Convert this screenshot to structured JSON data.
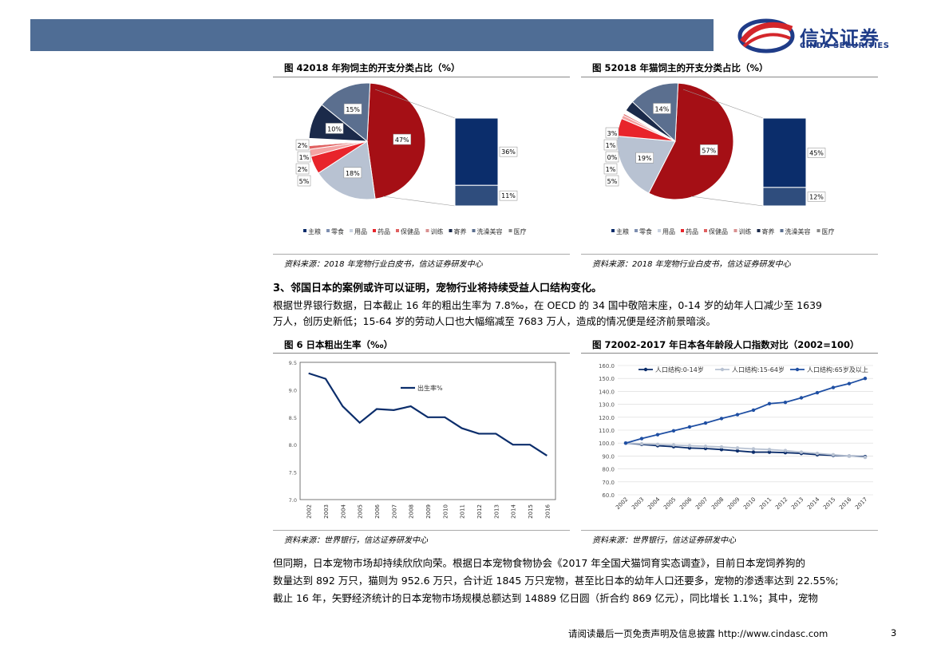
{
  "header": {
    "logo_cn": "信达证券",
    "logo_en": "CINDA SECURITIES"
  },
  "fig4": {
    "title": "图 42018 年狗饲主的开支分类占比（%）",
    "source": "资料来源：2018 年宠物行业白皮书，信达证券研发中心"
  },
  "fig5": {
    "title": "图 52018 年猫饲主的开支分类占比（%）",
    "source": "资料来源：2018 年宠物行业白皮书，信达证券研发中心"
  },
  "section": {
    "title": "3、邻国日本的案例或许可以证明，宠物行业将持续受益人口结构变化。",
    "para1_line1": "根据世界银行数据，日本截止 16 年的粗出生率为 7.8‰，在 OECD 的 34 国中敬陪末座，0-14 岁的幼年人口减少至 1639",
    "para1_line2": "万人，创历史新低；15-64 岁的劳动人口也大幅缩减至 7683 万人，造成的情况便是经济前景暗淡。"
  },
  "fig6": {
    "title": "图 6 日本粗出生率（‰）",
    "source": "资料来源：世界银行，信达证券研发中心"
  },
  "fig7": {
    "title": "图 72002-2017 年日本各年龄段人口指数对比（2002=100）",
    "source": "资料来源：世界银行，信达证券研发中心"
  },
  "para2": {
    "line1": "但同期，日本宠物市场却持续欣欣向荣。根据日本宠物食物协会《2017 年全国犬猫饲育实态调查》，目前日本宠饲养狗的",
    "line2": "数量达到 892 万只，猫则为 952.6 万只，合计近 1845 万只宠物，甚至比日本的幼年人口还要多，宠物的渗透率达到 22.55%;",
    "line3": "截止 16 年，矢野经济统计的日本宠物市场规模总额达到 14889 亿日圆（折合约 869 亿元），同比增长 1.1%；其中，宠物"
  },
  "footer": {
    "text": "请阅读最后一页免责声明及信息披露 http://www.cindasc.com",
    "page": "3"
  },
  "colors": {
    "header_bar": "#4f6d95",
    "red": "#a50f15",
    "navy": "#1b2a4a",
    "slate": "#5b6f8f",
    "silver": "#b8c2d2",
    "bright_red": "#e8242b",
    "dark_blue": "#0b2d6b"
  },
  "chart_data": [
    {
      "type": "pie",
      "id": "fig4",
      "legend": [
        "主粮",
        "零食",
        "用品",
        "药品",
        "保健品",
        "训练",
        "寄养",
        "洗澡美容",
        "医疗"
      ],
      "slices": [
        {
          "name": "主粮",
          "label": "47%",
          "value": 47
        },
        {
          "name": "用品",
          "label": "18%",
          "value": 18
        },
        {
          "name": "药品",
          "label": "5%",
          "value": 5
        },
        {
          "name": "保健品",
          "label": "2%",
          "value": 2
        },
        {
          "name": "训练",
          "label": "1%",
          "value": 1
        },
        {
          "name": "寄养",
          "label": "2%",
          "value": 2
        },
        {
          "name": "洗澡美容",
          "label": "10%",
          "value": 10
        },
        {
          "name": "医疗",
          "label": "15%",
          "value": 15
        }
      ],
      "breakout": [
        {
          "label": "36%",
          "value": 36
        },
        {
          "label": "11%",
          "value": 11
        }
      ]
    },
    {
      "type": "pie",
      "id": "fig5",
      "legend": [
        "主粮",
        "零食",
        "用品",
        "药品",
        "保健品",
        "训练",
        "寄养",
        "洗澡美容",
        "医疗"
      ],
      "slices": [
        {
          "name": "主粮",
          "label": "57%",
          "value": 57
        },
        {
          "name": "用品",
          "label": "19%",
          "value": 19
        },
        {
          "name": "药品",
          "label": "5%",
          "value": 5
        },
        {
          "name": "保健品",
          "label": "1%",
          "value": 1
        },
        {
          "name": "训练",
          "label": "0%",
          "value": 0.5
        },
        {
          "name": "寄养",
          "label": "1%",
          "value": 1
        },
        {
          "name": "洗澡美容",
          "label": "3%",
          "value": 3
        },
        {
          "name": "医疗",
          "label": "14%",
          "value": 14
        }
      ],
      "breakout": [
        {
          "label": "45%",
          "value": 45
        },
        {
          "label": "12%",
          "value": 12
        }
      ]
    },
    {
      "type": "line",
      "id": "fig6",
      "x": [
        "2002",
        "2003",
        "2004",
        "2005",
        "2006",
        "2007",
        "2008",
        "2009",
        "2010",
        "2011",
        "2012",
        "2013",
        "2014",
        "2015",
        "2016"
      ],
      "series": [
        {
          "name": "出生率%",
          "values": [
            9.3,
            9.2,
            8.7,
            8.4,
            8.65,
            8.63,
            8.7,
            8.5,
            8.5,
            8.3,
            8.2,
            8.2,
            8.0,
            8.0,
            7.8
          ]
        }
      ],
      "ylim": [
        7.0,
        9.5
      ],
      "yticks": [
        "7.0",
        "7.5",
        "8.0",
        "8.5",
        "9.0",
        "9.5"
      ]
    },
    {
      "type": "line",
      "id": "fig7",
      "x": [
        "2002",
        "2003",
        "2004",
        "2005",
        "2006",
        "2007",
        "2008",
        "2009",
        "2010",
        "2011",
        "2012",
        "2013",
        "2014",
        "2015",
        "2016",
        "2017"
      ],
      "series": [
        {
          "name": "人口结构:0-14岁",
          "values": [
            100,
            99.0,
            98.0,
            97.2,
            96.2,
            95.8,
            95.0,
            94.0,
            93.0,
            93.0,
            92.6,
            92.0,
            91.0,
            90.5,
            90.0,
            89.5
          ]
        },
        {
          "name": "人口结构:15-64岁",
          "values": [
            100,
            99.5,
            99.0,
            98.5,
            98.0,
            97.5,
            97.0,
            96.2,
            95.5,
            95.0,
            94.2,
            93.0,
            92.0,
            91.0,
            90.0,
            89.0
          ]
        },
        {
          "name": "人口结构:65岁及以上",
          "values": [
            100,
            103.5,
            106.5,
            109.5,
            112.5,
            115.5,
            119.0,
            122.0,
            125.5,
            130.5,
            131.5,
            135.0,
            139.0,
            143.0,
            146.0,
            150.0
          ]
        }
      ],
      "ylim": [
        60,
        160
      ],
      "yticks": [
        "60.0",
        "70.0",
        "80.0",
        "90.0",
        "100.0",
        "110.0",
        "120.0",
        "130.0",
        "140.0",
        "150.0",
        "160.0"
      ]
    }
  ]
}
